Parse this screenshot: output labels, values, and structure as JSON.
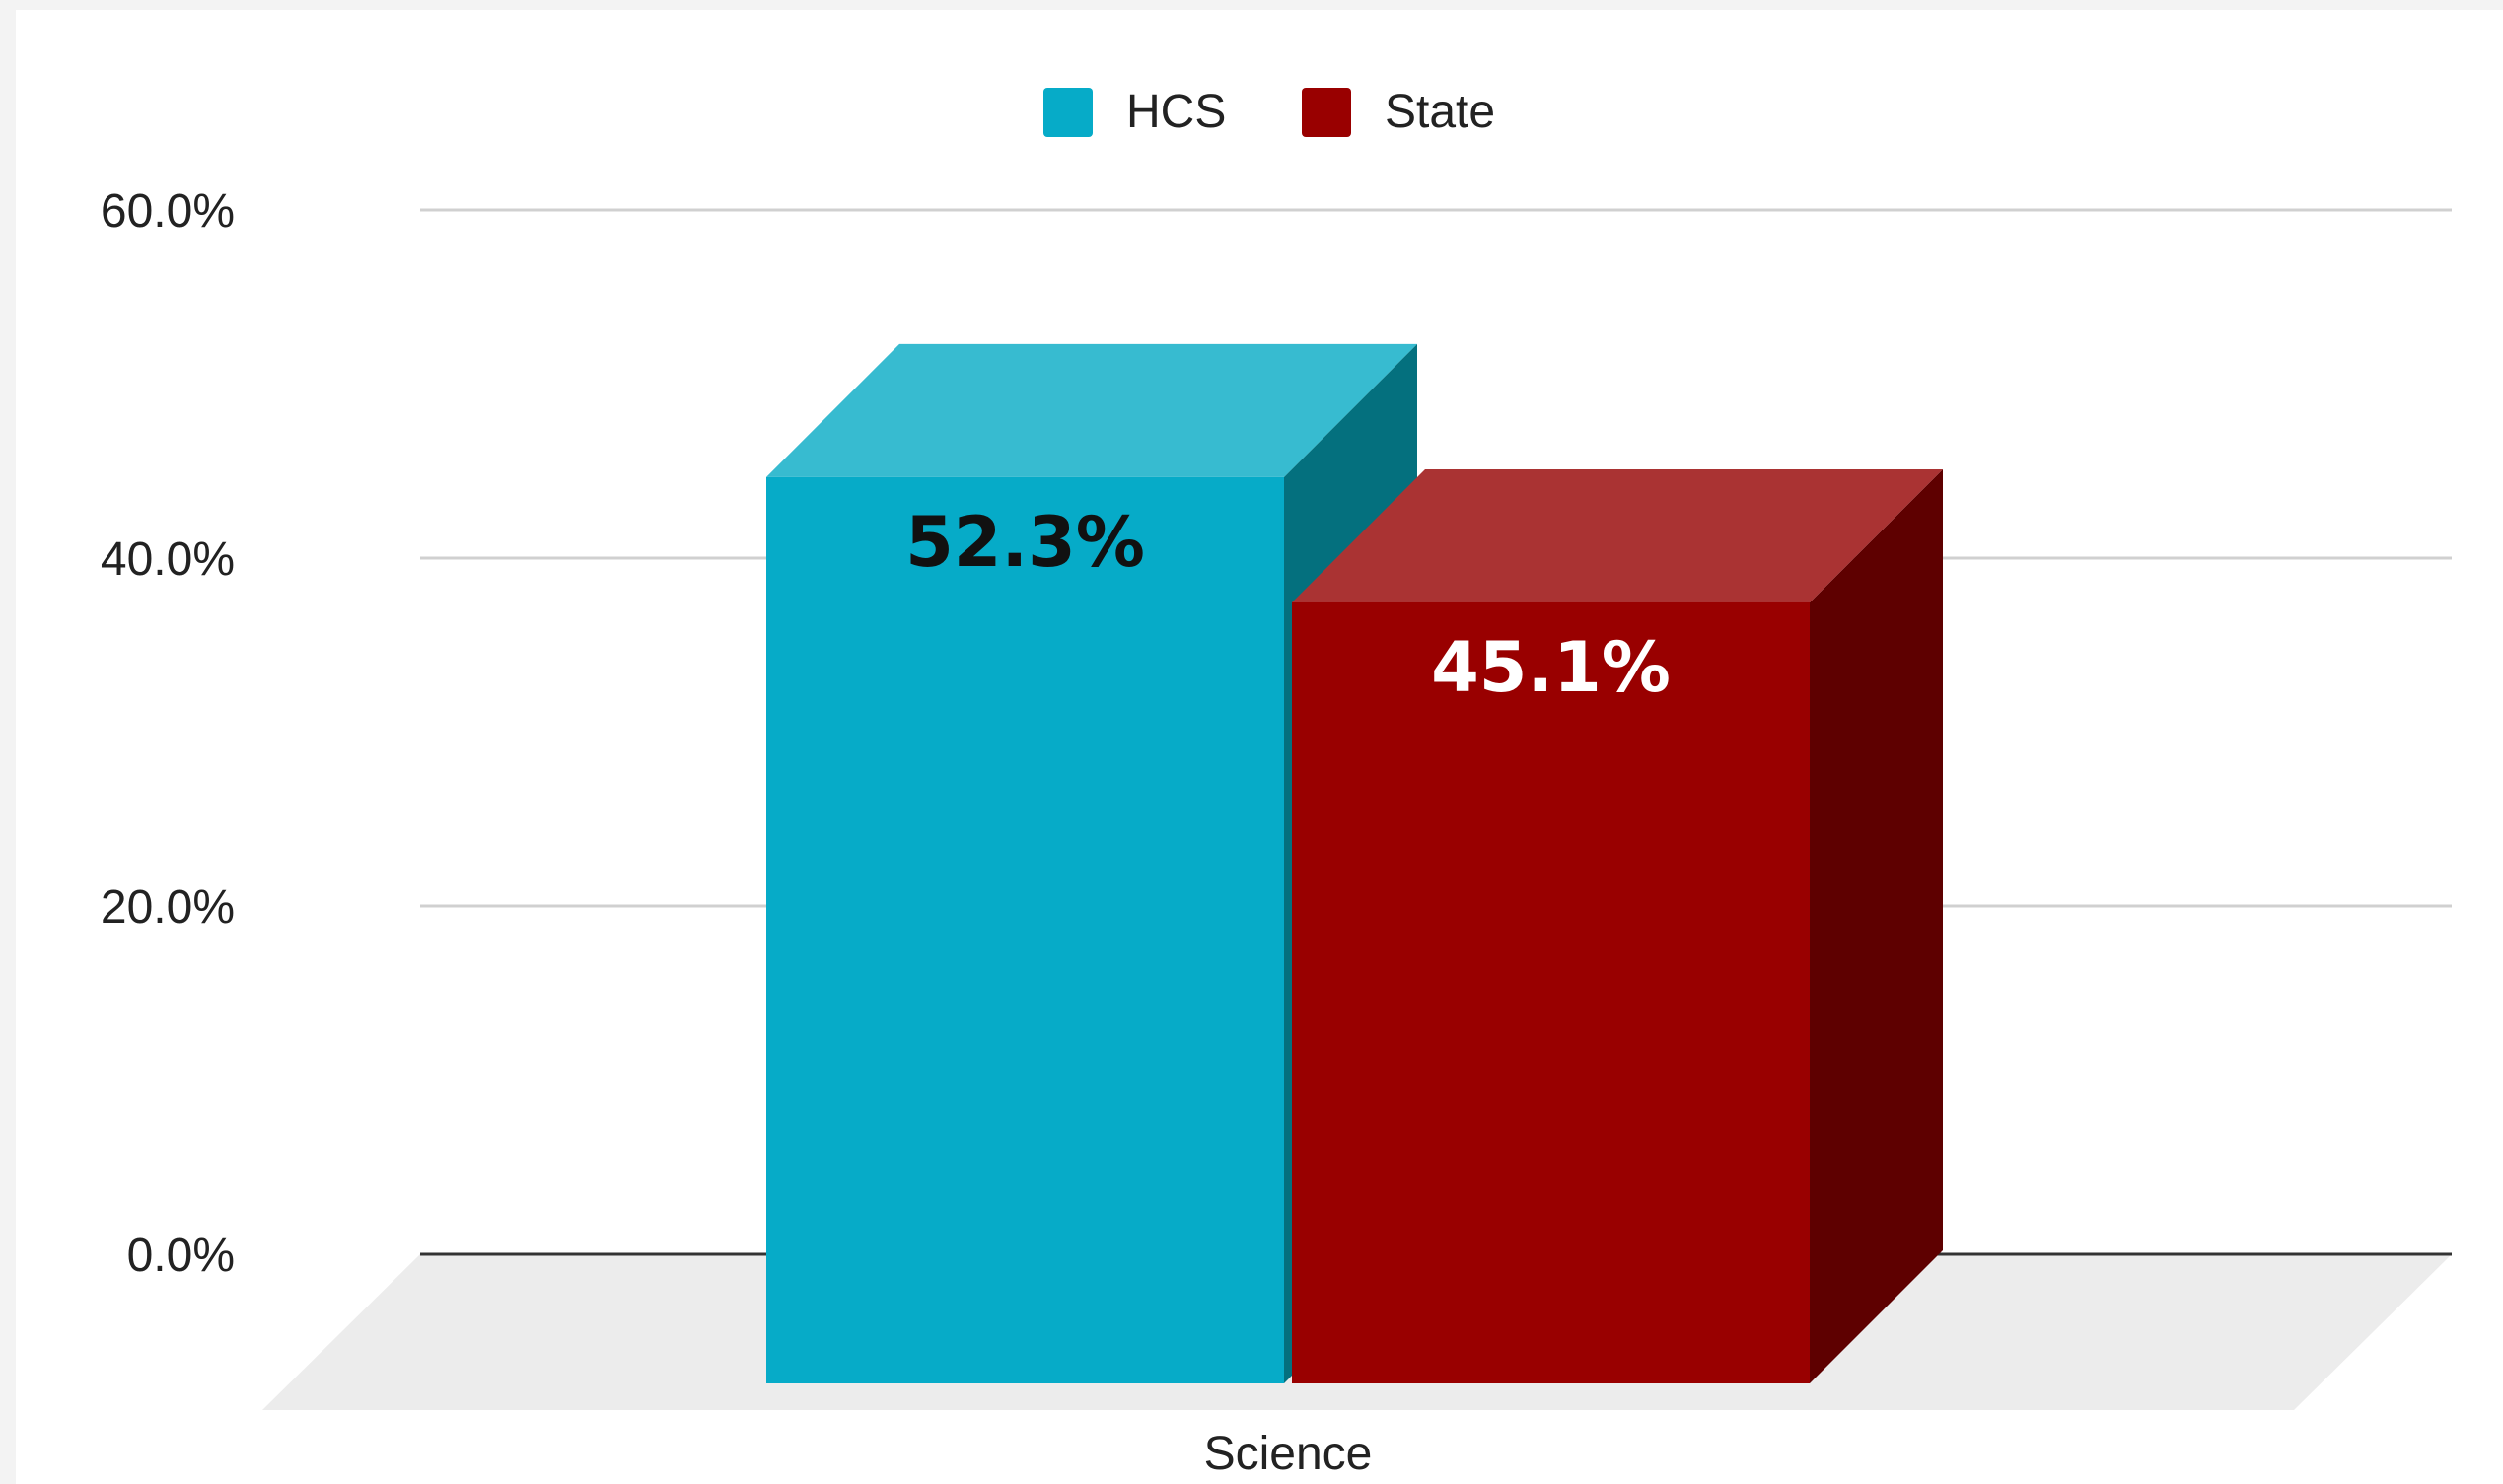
{
  "chart_data": {
    "type": "bar",
    "title": "",
    "xlabel": "",
    "ylabel": "",
    "categories": [
      "Science"
    ],
    "series": [
      {
        "name": "HCS",
        "values": [
          52.3
        ],
        "data_labels": [
          "52.3%"
        ],
        "color": "#06abc8",
        "top_color": "#37bbd0",
        "side_color": "#04707e",
        "label_color": "#111111"
      },
      {
        "name": "State",
        "values": [
          45.1
        ],
        "data_labels": [
          "45.1%"
        ],
        "color": "#990000",
        "top_color": "#aa3333",
        "side_color": "#5e0000",
        "label_color": "#ffffff"
      }
    ],
    "ylim": [
      0,
      60
    ],
    "yticks": [
      "0.0%",
      "20.0%",
      "40.0%",
      "60.0%"
    ],
    "ytick_values": [
      0,
      20,
      40,
      60
    ],
    "legend": "top-center",
    "grid": true,
    "style": "3d-column"
  }
}
